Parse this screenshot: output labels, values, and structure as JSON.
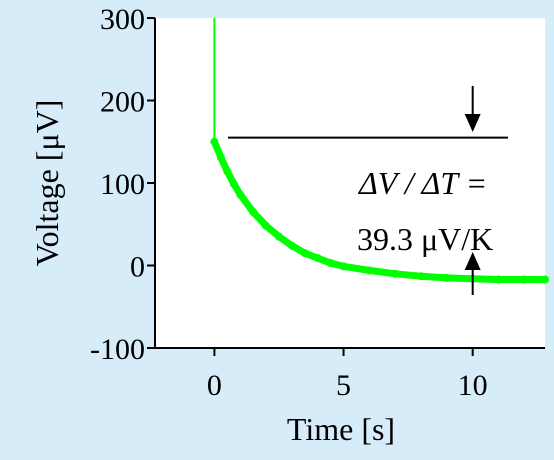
{
  "chart_data": {
    "type": "line",
    "title": "",
    "xlabel": "Time [s]",
    "ylabel": "Voltage [μV]",
    "xlim": [
      -2.3,
      12.8
    ],
    "ylim": [
      -100,
      300
    ],
    "xticks": [
      0,
      5,
      10
    ],
    "xtick_labels": [
      "0",
      "5",
      "10"
    ],
    "yticks": [
      -100,
      0,
      100,
      200,
      300
    ],
    "ytick_labels": [
      "-100",
      "0",
      "100",
      "200",
      "300"
    ],
    "grid": false,
    "legend": "none",
    "series": [
      {
        "color": "#00ff00",
        "points": [
          [
            0.0,
            300
          ],
          [
            0.0,
            150
          ],
          [
            0.25,
            131
          ],
          [
            0.5,
            114
          ],
          [
            0.75,
            99
          ],
          [
            1.0,
            86
          ],
          [
            1.5,
            65
          ],
          [
            2.0,
            48
          ],
          [
            2.5,
            35
          ],
          [
            3.0,
            24
          ],
          [
            3.5,
            15
          ],
          [
            4.0,
            9
          ],
          [
            4.5,
            3
          ],
          [
            5.0,
            -1
          ],
          [
            6.0,
            -6
          ],
          [
            7.0,
            -10
          ],
          [
            8.0,
            -13
          ],
          [
            9.0,
            -15
          ],
          [
            10.0,
            -16
          ],
          [
            11.0,
            -17
          ],
          [
            12.0,
            -17
          ],
          [
            12.8,
            -17
          ]
        ]
      }
    ],
    "annotations": [
      {
        "text": "ΔV / ΔT =",
        "role": "delta-ratio"
      },
      {
        "text": "39.3 μV/K",
        "role": "seebeck-value"
      }
    ],
    "reference_line_y": 155,
    "arrow_down_x": 10.0,
    "arrow_up_x": 10.0
  }
}
